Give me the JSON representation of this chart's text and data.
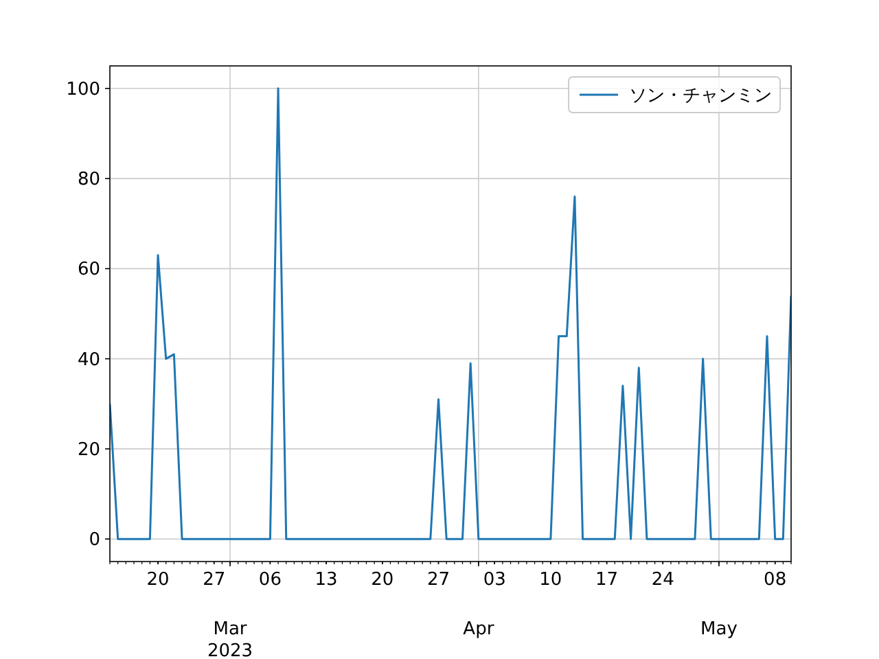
{
  "chart_data": {
    "type": "line",
    "x": [
      "2023-02-14",
      "2023-02-15",
      "2023-02-16",
      "2023-02-17",
      "2023-02-18",
      "2023-02-19",
      "2023-02-20",
      "2023-02-21",
      "2023-02-22",
      "2023-02-23",
      "2023-02-24",
      "2023-02-25",
      "2023-02-26",
      "2023-02-27",
      "2023-02-28",
      "2023-03-01",
      "2023-03-02",
      "2023-03-03",
      "2023-03-04",
      "2023-03-05",
      "2023-03-06",
      "2023-03-07",
      "2023-03-08",
      "2023-03-09",
      "2023-03-10",
      "2023-03-11",
      "2023-03-12",
      "2023-03-13",
      "2023-03-14",
      "2023-03-15",
      "2023-03-16",
      "2023-03-17",
      "2023-03-18",
      "2023-03-19",
      "2023-03-20",
      "2023-03-21",
      "2023-03-22",
      "2023-03-23",
      "2023-03-24",
      "2023-03-25",
      "2023-03-26",
      "2023-03-27",
      "2023-03-28",
      "2023-03-29",
      "2023-03-30",
      "2023-03-31",
      "2023-04-01",
      "2023-04-02",
      "2023-04-03",
      "2023-04-04",
      "2023-04-05",
      "2023-04-06",
      "2023-04-07",
      "2023-04-08",
      "2023-04-09",
      "2023-04-10",
      "2023-04-11",
      "2023-04-12",
      "2023-04-13",
      "2023-04-14",
      "2023-04-15",
      "2023-04-16",
      "2023-04-17",
      "2023-04-18",
      "2023-04-19",
      "2023-04-20",
      "2023-04-21",
      "2023-04-22",
      "2023-04-23",
      "2023-04-24",
      "2023-04-25",
      "2023-04-26",
      "2023-04-27",
      "2023-04-28",
      "2023-04-29",
      "2023-04-30",
      "2023-05-01",
      "2023-05-02",
      "2023-05-03",
      "2023-05-04",
      "2023-05-05",
      "2023-05-06",
      "2023-05-07",
      "2023-05-08",
      "2023-05-09",
      "2023-05-10"
    ],
    "series": [
      {
        "name": "ソン・チャンミン",
        "color": "#1f77b4",
        "values": [
          30,
          0,
          0,
          0,
          0,
          0,
          63,
          40,
          41,
          0,
          0,
          0,
          0,
          0,
          0,
          0,
          0,
          0,
          0,
          0,
          0,
          100,
          0,
          0,
          0,
          0,
          0,
          0,
          0,
          0,
          0,
          0,
          0,
          0,
          0,
          0,
          0,
          0,
          0,
          0,
          0,
          31,
          0,
          0,
          0,
          39,
          0,
          0,
          0,
          0,
          0,
          0,
          0,
          0,
          0,
          0,
          45,
          45,
          76,
          0,
          0,
          0,
          0,
          0,
          34,
          0,
          38,
          0,
          0,
          0,
          0,
          0,
          0,
          0,
          40,
          0,
          0,
          0,
          0,
          0,
          0,
          0,
          45,
          0,
          0,
          54
        ]
      }
    ],
    "xlim": [
      "2023-02-14",
      "2023-05-10"
    ],
    "xticks": [
      {
        "value": "2023-02-20",
        "label": "20"
      },
      {
        "value": "2023-02-27",
        "label": "27"
      },
      {
        "value": "2023-03-01",
        "label": null
      },
      {
        "value": "2023-03-06",
        "label": "06"
      },
      {
        "value": "2023-03-13",
        "label": "13"
      },
      {
        "value": "2023-03-20",
        "label": "20"
      },
      {
        "value": "2023-03-27",
        "label": "27"
      },
      {
        "value": "2023-04-01",
        "label": null
      },
      {
        "value": "2023-04-03",
        "label": "03"
      },
      {
        "value": "2023-04-10",
        "label": "10"
      },
      {
        "value": "2023-04-17",
        "label": "17"
      },
      {
        "value": "2023-04-24",
        "label": "24"
      },
      {
        "value": "2023-05-01",
        "label": null
      },
      {
        "value": "2023-05-08",
        "label": "08"
      }
    ],
    "annotations": [
      "Mar\n2023",
      "Apr",
      "May"
    ],
    "ylim": [
      -5,
      105
    ],
    "yticks": [
      0,
      20,
      40,
      60,
      80,
      100
    ],
    "grid": true,
    "legend": "top right",
    "line_style": "solid",
    "marker": "none"
  }
}
